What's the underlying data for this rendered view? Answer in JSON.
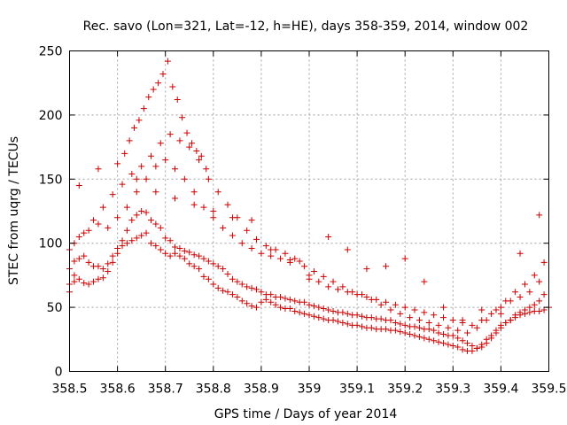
{
  "chart_data": {
    "type": "scatter",
    "title": "Rec. savo (Lon=321, Lat=-12, h=HE), days 358-359, 2014, window 002",
    "xlabel": "GPS time / Days of year 2014",
    "ylabel": "STEC from uqrg / TECUs",
    "xlim": [
      358.5,
      359.5
    ],
    "ylim": [
      0,
      250
    ],
    "x_ticks": [
      358.5,
      358.6,
      358.7,
      358.8,
      358.9,
      359.0,
      359.1,
      359.2,
      359.3,
      359.4,
      359.5
    ],
    "x_tick_labels": [
      "358.5",
      "358.6",
      "358.7",
      "358.8",
      "358.9",
      "359",
      "359.1",
      "359.2",
      "359.3",
      "359.4",
      "359.5"
    ],
    "y_ticks": [
      0,
      50,
      100,
      150,
      200,
      250
    ],
    "y_tick_labels": [
      "0",
      "50",
      "100",
      "150",
      "200",
      "250"
    ],
    "grid": true,
    "marker": "+",
    "color": "#cc0000",
    "series": [
      {
        "name": "STEC",
        "x": [
          358.5,
          358.5,
          358.51,
          358.51,
          358.52,
          358.53,
          358.54,
          358.55,
          358.56,
          358.57,
          358.58,
          358.59,
          358.6,
          358.61,
          358.62,
          358.63,
          358.64,
          358.65,
          358.66,
          358.67,
          358.68,
          358.69,
          358.7,
          358.71,
          358.72,
          358.73,
          358.74,
          358.75,
          358.76,
          358.77,
          358.78,
          358.79,
          358.8,
          358.81,
          358.82,
          358.83,
          358.84,
          358.85,
          358.86,
          358.87,
          358.88,
          358.89,
          358.9,
          358.91,
          358.92,
          358.93,
          358.94,
          358.95,
          358.96,
          358.97,
          358.98,
          358.99,
          359.0,
          359.01,
          359.02,
          359.03,
          359.04,
          359.05,
          359.06,
          359.07,
          359.08,
          359.09,
          359.1,
          359.11,
          359.12,
          359.13,
          359.14,
          359.15,
          359.16,
          359.17,
          359.18,
          359.19,
          359.2,
          359.21,
          359.22,
          359.23,
          359.24,
          359.25,
          359.26,
          359.27,
          359.28,
          359.29,
          359.3,
          359.31,
          359.32,
          359.33,
          359.34,
          359.35,
          359.36,
          359.37,
          359.38,
          359.39,
          359.4,
          359.41,
          359.42,
          359.43,
          359.44,
          359.45,
          359.46,
          359.47,
          359.48,
          359.49,
          359.5,
          358.5,
          358.51,
          358.52,
          358.53,
          358.54,
          358.55,
          358.56,
          358.57,
          358.58,
          358.59,
          358.6,
          358.61,
          358.62,
          358.63,
          358.64,
          358.65,
          358.66,
          358.67,
          358.68,
          358.69,
          358.7,
          358.71,
          358.72,
          358.73,
          358.74,
          358.75,
          358.76,
          358.77,
          358.78,
          358.79,
          358.8,
          358.81,
          358.82,
          358.83,
          358.84,
          358.85,
          358.86,
          358.87,
          358.88,
          358.89,
          358.9,
          358.91,
          358.92,
          358.93,
          358.94,
          358.95,
          358.96,
          358.97,
          358.98,
          358.99,
          359.0,
          359.01,
          359.02,
          359.03,
          359.04,
          359.05,
          359.06,
          359.07,
          359.08,
          359.09,
          359.1,
          359.11,
          359.12,
          359.13,
          359.14,
          359.15,
          359.16,
          359.17,
          359.18,
          359.19,
          359.2,
          359.21,
          359.22,
          359.23,
          359.24,
          359.25,
          359.26,
          359.27,
          359.28,
          359.29,
          359.3,
          359.31,
          359.32,
          359.33,
          359.34,
          359.35,
          359.36,
          359.37,
          359.38,
          359.39,
          359.4,
          359.41,
          359.42,
          359.43,
          359.44,
          359.45,
          359.46,
          359.47,
          359.48,
          359.49,
          358.5,
          358.52,
          358.54,
          358.56,
          358.58,
          358.6,
          358.62,
          358.64,
          358.66,
          358.68,
          358.7,
          358.72,
          358.74,
          358.76,
          358.78,
          358.8,
          358.82,
          358.84,
          358.86,
          358.88,
          358.9,
          358.92,
          358.94,
          358.96,
          358.98,
          359.0,
          359.02,
          359.04,
          359.06,
          359.08,
          359.1,
          359.12,
          359.14,
          359.16,
          359.18,
          359.2,
          359.22,
          359.24,
          359.26,
          359.28,
          359.3,
          359.32,
          359.34,
          359.36,
          359.38,
          359.4,
          359.42,
          359.44,
          359.46,
          359.48,
          358.51,
          358.53,
          358.55,
          358.57,
          358.59,
          358.61,
          358.63,
          358.65,
          358.67,
          358.69,
          358.71,
          358.73,
          358.75,
          358.77,
          358.79,
          358.81,
          358.83,
          358.85,
          358.87,
          358.89,
          358.91,
          358.93,
          358.95,
          358.97,
          358.99,
          359.01,
          359.03,
          359.05,
          359.07,
          359.09,
          359.11,
          359.13,
          359.15,
          359.17,
          359.19,
          359.21,
          359.23,
          359.25,
          359.27,
          359.29,
          359.31,
          359.33,
          359.35,
          359.37,
          359.39,
          359.41,
          359.43,
          359.45,
          359.47,
          359.49,
          358.615,
          358.625,
          358.635,
          358.645,
          358.655,
          358.665,
          358.675,
          358.685,
          358.695,
          358.705,
          358.715,
          358.725,
          358.735,
          358.745,
          358.755,
          358.765,
          358.775,
          358.785,
          358.52,
          358.56,
          358.6,
          358.64,
          358.68,
          358.72,
          358.76,
          358.8,
          358.84,
          358.88,
          358.92,
          358.96,
          359.0,
          359.04,
          359.08,
          359.12,
          359.16,
          359.2,
          359.24,
          359.28,
          359.32,
          359.36,
          359.4,
          359.44,
          359.48
        ],
        "y": [
          62,
          68,
          70,
          75,
          72,
          69,
          68,
          70,
          72,
          73,
          78,
          85,
          92,
          98,
          100,
          102,
          104,
          106,
          108,
          100,
          98,
          95,
          92,
          90,
          92,
          90,
          88,
          84,
          82,
          80,
          74,
          72,
          68,
          65,
          63,
          62,
          60,
          58,
          55,
          53,
          51,
          50,
          54,
          56,
          54,
          52,
          50,
          49,
          49,
          47,
          46,
          45,
          44,
          43,
          42,
          41,
          40,
          40,
          39,
          38,
          37,
          36,
          36,
          35,
          34,
          34,
          33,
          33,
          33,
          32,
          32,
          31,
          30,
          29,
          28,
          27,
          26,
          25,
          24,
          23,
          22,
          21,
          20,
          19,
          17,
          16,
          16,
          18,
          21,
          25,
          28,
          32,
          36,
          38,
          40,
          42,
          44,
          45,
          46,
          47,
          47,
          48,
          50,
          80,
          86,
          88,
          90,
          85,
          82,
          82,
          80,
          84,
          90,
          96,
          102,
          110,
          118,
          122,
          125,
          124,
          118,
          115,
          112,
          104,
          102,
          97,
          96,
          94,
          93,
          91,
          90,
          88,
          86,
          84,
          82,
          80,
          76,
          72,
          70,
          68,
          66,
          65,
          64,
          62,
          60,
          60,
          58,
          58,
          57,
          56,
          55,
          54,
          54,
          52,
          51,
          50,
          49,
          48,
          47,
          46,
          46,
          45,
          44,
          44,
          43,
          42,
          42,
          41,
          41,
          40,
          40,
          38,
          37,
          36,
          35,
          35,
          34,
          33,
          33,
          32,
          30,
          29,
          28,
          28,
          26,
          24,
          22,
          20,
          18,
          19,
          22,
          26,
          30,
          34,
          38,
          40,
          44,
          46,
          48,
          50,
          52,
          55,
          60,
          95,
          105,
          110,
          115,
          112,
          120,
          128,
          140,
          150,
          160,
          165,
          158,
          150,
          140,
          128,
          120,
          112,
          106,
          100,
          96,
          92,
          90,
          88,
          87,
          86,
          72,
          70,
          66,
          64,
          62,
          60,
          58,
          56,
          54,
          52,
          50,
          48,
          46,
          44,
          42,
          40,
          38,
          36,
          40,
          45,
          50,
          55,
          58,
          62,
          70,
          100,
          108,
          118,
          128,
          138,
          146,
          154,
          160,
          168,
          178,
          185,
          180,
          175,
          165,
          150,
          140,
          130,
          120,
          110,
          103,
          98,
          95,
          92,
          88,
          82,
          78,
          74,
          70,
          66,
          62,
          60,
          56,
          52,
          48,
          45,
          42,
          40,
          38,
          36,
          34,
          32,
          30,
          34,
          40,
          48,
          55,
          62,
          68,
          75,
          85,
          170,
          180,
          190,
          196,
          205,
          214,
          220,
          225,
          232,
          242,
          222,
          212,
          198,
          186,
          178,
          172,
          168,
          158,
          145,
          158,
          162,
          150,
          140,
          135,
          130,
          125,
          120,
          118,
          95,
          85,
          75,
          105,
          95,
          80,
          82,
          88,
          70,
          50,
          40,
          48,
          45,
          92,
          122
        ]
      }
    ]
  }
}
